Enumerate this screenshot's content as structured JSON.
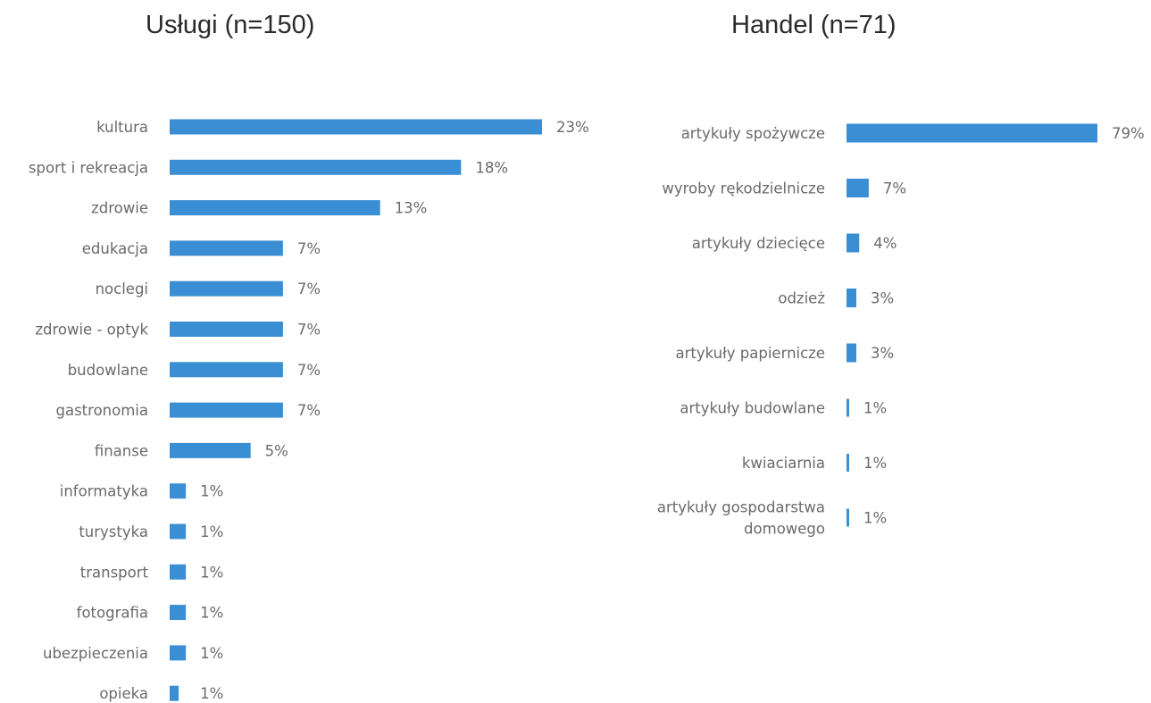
{
  "chart_data": [
    {
      "type": "bar",
      "orientation": "horizontal",
      "title": "Usługi (n=150)",
      "categories": [
        "kultura",
        "sport i rekreacja",
        "zdrowie",
        "edukacja",
        "noclegi",
        "zdrowie - optyk",
        "budowlane",
        "gastronomia",
        "finanse",
        "informatyka",
        "turystyka",
        "transport",
        "fotografia",
        "ubezpieczenia",
        "opieka"
      ],
      "values": [
        23,
        18,
        13,
        7,
        7,
        7,
        7,
        7,
        5,
        1,
        1,
        1,
        1,
        1,
        1
      ],
      "value_labels": [
        "23%",
        "18%",
        "13%",
        "7%",
        "7%",
        "7%",
        "7%",
        "7%",
        "5%",
        "1%",
        "1%",
        "1%",
        "1%",
        "1%",
        "1%"
      ],
      "unit": "%",
      "xlim": [
        0,
        23
      ],
      "grid": false,
      "legend": "none",
      "bar_color": "#3a8fd4"
    },
    {
      "type": "bar",
      "orientation": "horizontal",
      "title": "Handel (n=71)",
      "categories": [
        "artykuły spożywcze",
        "wyroby rękodzielnicze",
        "artykuły dziecięce",
        "odzież",
        "artykuły papiernicze",
        "artykuły budowlane",
        "kwiaciarnia",
        "artykuły gospodarstwa domowego"
      ],
      "values": [
        79,
        7,
        4,
        3,
        3,
        1,
        1,
        1
      ],
      "value_labels": [
        "79%",
        "7%",
        "4%",
        "3%",
        "3%",
        "1%",
        "1%",
        "1%"
      ],
      "unit": "%",
      "xlim": [
        0,
        79
      ],
      "grid": false,
      "legend": "none",
      "bar_color": "#3a8fd4"
    }
  ]
}
